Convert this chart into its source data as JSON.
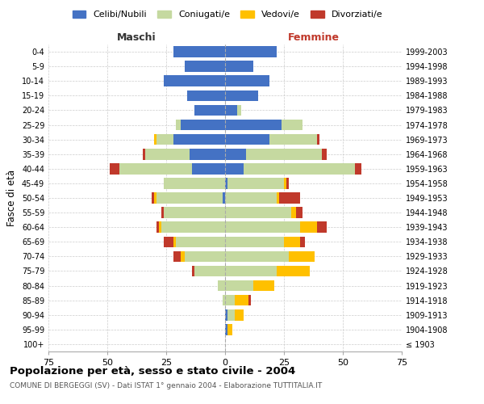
{
  "age_groups": [
    "100+",
    "95-99",
    "90-94",
    "85-89",
    "80-84",
    "75-79",
    "70-74",
    "65-69",
    "60-64",
    "55-59",
    "50-54",
    "45-49",
    "40-44",
    "35-39",
    "30-34",
    "25-29",
    "20-24",
    "15-19",
    "10-14",
    "5-9",
    "0-4"
  ],
  "birth_years": [
    "≤ 1903",
    "1904-1908",
    "1909-1913",
    "1914-1918",
    "1919-1923",
    "1924-1928",
    "1929-1933",
    "1934-1938",
    "1939-1943",
    "1944-1948",
    "1949-1953",
    "1954-1958",
    "1959-1963",
    "1964-1968",
    "1969-1973",
    "1974-1978",
    "1979-1983",
    "1984-1988",
    "1989-1993",
    "1994-1998",
    "1999-2003"
  ],
  "colors": {
    "celibi": "#4472c4",
    "coniugati": "#c5d9a0",
    "vedovi": "#ffc000",
    "divorziati": "#c0392b"
  },
  "maschi": {
    "celibi": [
      0,
      0,
      0,
      0,
      0,
      0,
      0,
      0,
      0,
      0,
      1,
      0,
      14,
      15,
      22,
      19,
      13,
      16,
      26,
      17,
      22
    ],
    "coniugati": [
      0,
      0,
      0,
      1,
      3,
      13,
      17,
      21,
      27,
      26,
      28,
      26,
      31,
      19,
      7,
      2,
      0,
      0,
      0,
      0,
      0
    ],
    "vedovi": [
      0,
      0,
      0,
      0,
      0,
      0,
      2,
      1,
      1,
      0,
      1,
      0,
      0,
      0,
      1,
      0,
      0,
      0,
      0,
      0,
      0
    ],
    "divorziati": [
      0,
      0,
      0,
      0,
      0,
      1,
      3,
      4,
      1,
      1,
      1,
      0,
      4,
      1,
      0,
      0,
      0,
      0,
      0,
      0,
      0
    ]
  },
  "femmine": {
    "celibi": [
      0,
      1,
      1,
      0,
      0,
      0,
      0,
      0,
      0,
      0,
      0,
      1,
      8,
      9,
      19,
      24,
      5,
      14,
      19,
      12,
      22
    ],
    "coniugati": [
      0,
      0,
      3,
      4,
      12,
      22,
      27,
      25,
      32,
      28,
      22,
      24,
      47,
      32,
      20,
      9,
      2,
      0,
      0,
      0,
      0
    ],
    "vedovi": [
      0,
      2,
      4,
      6,
      9,
      14,
      11,
      7,
      7,
      2,
      1,
      1,
      0,
      0,
      0,
      0,
      0,
      0,
      0,
      0,
      0
    ],
    "divorziati": [
      0,
      0,
      0,
      1,
      0,
      0,
      0,
      2,
      4,
      3,
      9,
      1,
      3,
      2,
      1,
      0,
      0,
      0,
      0,
      0,
      0
    ]
  },
  "xlim": 75,
  "title": "Popolazione per età, sesso e stato civile - 2004",
  "subtitle": "COMUNE DI BERGEGGI (SV) - Dati ISTAT 1° gennaio 2004 - Elaborazione TUTTITALIA.IT",
  "xlabel_left": "Maschi",
  "xlabel_right": "Femmine",
  "ylabel_left": "Fasce di età",
  "legend_labels": [
    "Celibi/Nubili",
    "Coniugati/e",
    "Vedovi/e",
    "Divorziati/e"
  ],
  "bg_color": "#ffffff"
}
